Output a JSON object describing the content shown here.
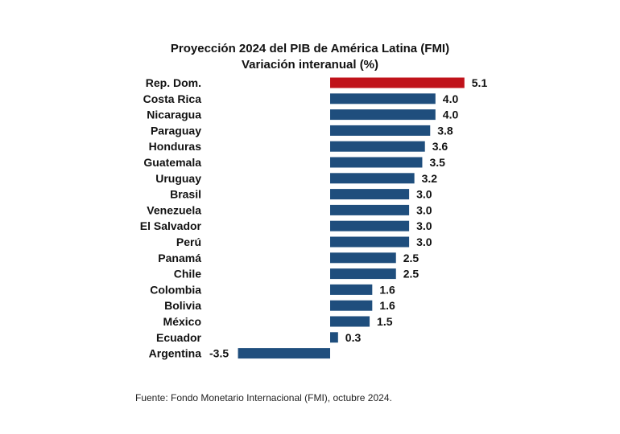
{
  "chart_data": {
    "type": "bar",
    "orientation": "horizontal",
    "title": "Proyección 2024 del PIB de América Latina (FMI)",
    "subtitle": "Variación interanual (%)",
    "categories": [
      "Rep. Dom.",
      "Costa Rica",
      "Nicaragua",
      "Paraguay",
      "Honduras",
      "Guatemala",
      "Uruguay",
      "Brasil",
      "Venezuela",
      "El Salvador",
      "Perú",
      "Panamá",
      "Chile",
      "Colombia",
      "Bolivia",
      "México",
      "Ecuador",
      "Argentina"
    ],
    "values": [
      5.1,
      4.0,
      4.0,
      3.8,
      3.6,
      3.5,
      3.2,
      3.0,
      3.0,
      3.0,
      3.0,
      2.5,
      2.5,
      1.6,
      1.6,
      1.5,
      0.3,
      -3.5
    ],
    "value_labels": [
      "5.1",
      "4.0",
      "4.0",
      "3.8",
      "3.6",
      "3.5",
      "3.2",
      "3.0",
      "3.0",
      "3.0",
      "3.0",
      "2.5",
      "2.5",
      "1.6",
      "1.6",
      "1.5",
      "0.3",
      "-3.5"
    ],
    "highlight_category": "Rep. Dom.",
    "colors": {
      "default": "#1f4e7d",
      "highlight": "#c0121a"
    },
    "grid": false,
    "axes_visible": false,
    "source": "Fuente: Fondo Monetario Internacional (FMI), octubre 2024."
  }
}
